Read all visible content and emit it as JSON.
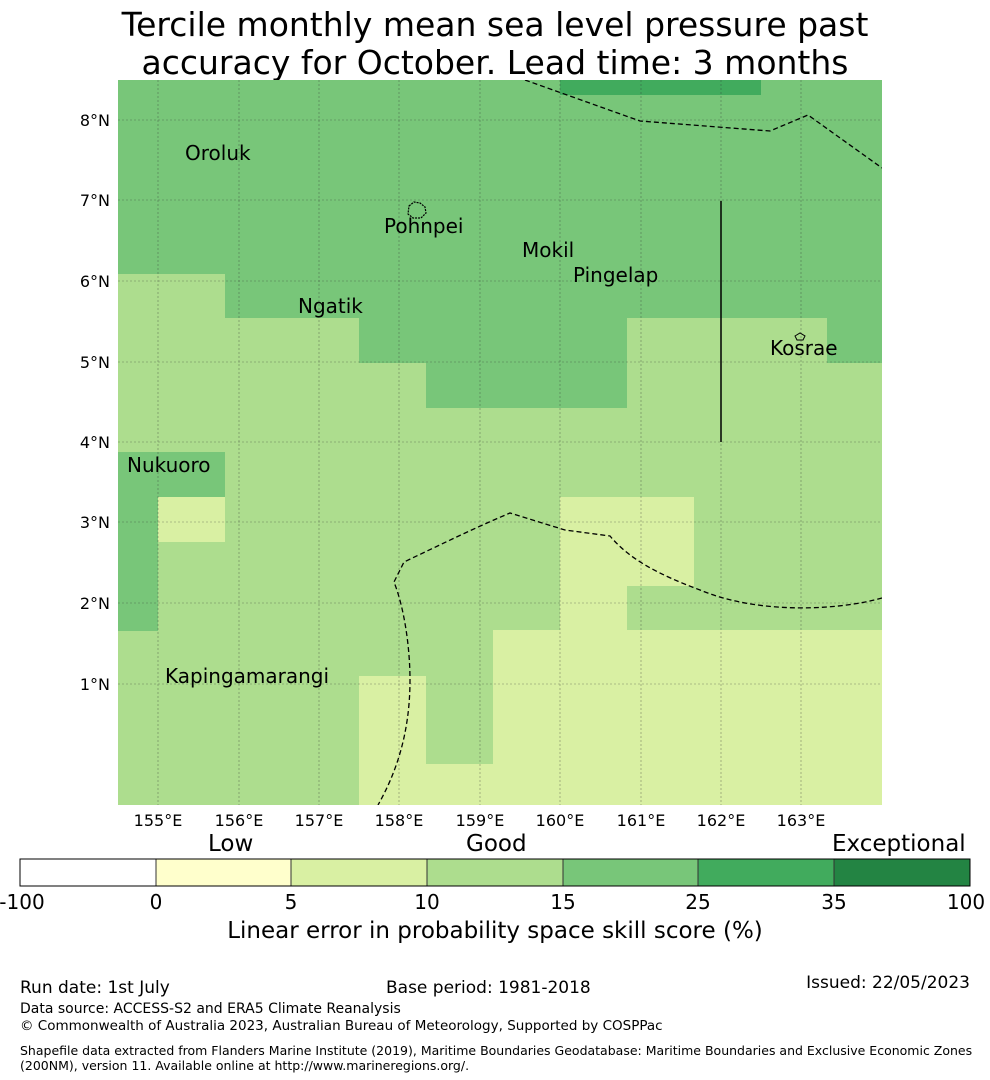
{
  "title": {
    "line1": "Tercile monthly mean sea level pressure past",
    "line2": "accuracy for October. Lead time: 3 months"
  },
  "map": {
    "lat_labels": [
      "8°N",
      "7°N",
      "6°N",
      "5°N",
      "4°N",
      "3°N",
      "2°N",
      "1°N"
    ],
    "lon_labels": [
      "155°E",
      "156°E",
      "157°E",
      "158°E",
      "159°E",
      "160°E",
      "161°E",
      "162°E",
      "163°E"
    ],
    "places": [
      "Oroluk",
      "Pohnpei",
      "Mokil",
      "Pingelap",
      "Ngatik",
      "Kosrae",
      "Nukuoro",
      "Kapingamarangi"
    ]
  },
  "colorbar": {
    "category_labels": [
      "Low",
      "Good",
      "Exceptional"
    ],
    "ticks": [
      "-100",
      "0",
      "5",
      "10",
      "15",
      "25",
      "35",
      "100"
    ],
    "colors": [
      "#ffffff",
      "#ffffcc",
      "#d9f0a3",
      "#addd8e",
      "#78c679",
      "#41ab5d",
      "#238443"
    ],
    "title": "Linear error in probability space skill score (%)"
  },
  "footer": {
    "run_date": "Run date: 1st July",
    "base_period": "Base period: 1981-2018",
    "issued": "Issued: 22/05/2023",
    "data_source": "Data source: ACCESS-S2 and ERA5 Climate Reanalysis",
    "copyright": "© Commonwealth of Australia 2023, Australian Bureau of Meteorology, Supported by COSPPac",
    "shapefile_line1": "Shapefile data extracted from Flanders Marine Institute (2019), Maritime Boundaries Geodatabase: Maritime Boundaries and Exclusive Economic Zones",
    "shapefile_line2": "(200NM), version 11. Available online at http://www.marineregions.org/."
  }
}
